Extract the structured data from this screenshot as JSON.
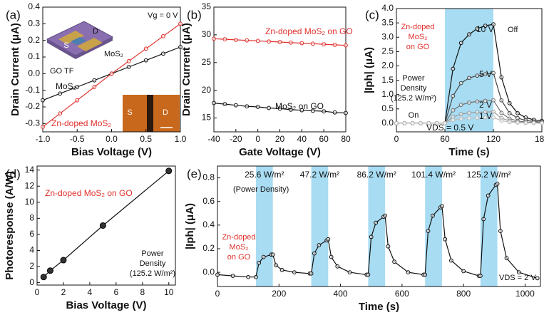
{
  "chart_data": [
    {
      "type": "line",
      "panel_label": "(a)",
      "x_label": "Bias Voltage (V)",
      "y_label": "Drain Current (μA)",
      "markers": true,
      "xlim": [
        -1,
        1
      ],
      "xticks": [
        {
          "value": -1,
          "label": "-1.0"
        },
        -0.5,
        {
          "value": 0,
          "label": "0.0"
        },
        0.5,
        {
          "value": 1,
          "label": "1.0"
        }
      ],
      "ylim": [
        -0.35,
        0.4
      ],
      "yticks": [
        -0.3,
        -0.2,
        -0.1,
        {
          "value": 0,
          "label": "0.0"
        },
        0.1,
        0.2,
        0.3,
        0.4
      ],
      "x": [
        -1,
        -0.75,
        -0.5,
        -0.25,
        0,
        0.25,
        0.5,
        0.75,
        1
      ],
      "series": [
        {
          "name": "MoS₂",
          "color": "#111111",
          "values": [
            -0.16,
            -0.12,
            -0.08,
            -0.04,
            0,
            0.04,
            0.08,
            0.12,
            0.16
          ]
        },
        {
          "name": "Zn-doped MoS₂",
          "color": "#e0302c",
          "values": [
            -0.32,
            -0.24,
            -0.16,
            -0.08,
            0,
            0.075,
            0.15,
            0.225,
            0.3
          ]
        }
      ],
      "annotations": [
        "Vg = 0 V",
        "S",
        "D",
        "MoS₂",
        "GO TF",
        "S",
        "D"
      ]
    },
    {
      "type": "line",
      "panel_label": "(b)",
      "x_label": "Gate Voltage (V)",
      "y_label": "Drain Current (μA)",
      "markers": true,
      "xlim": [
        -40,
        80
      ],
      "xticks": [
        -40,
        -20,
        0,
        20,
        40,
        60,
        80
      ],
      "ylim": [
        12.5,
        35
      ],
      "yticks": [
        15,
        20,
        25,
        30,
        35
      ],
      "x": [
        -40,
        -30,
        -20,
        -10,
        0,
        10,
        20,
        30,
        40,
        50,
        60,
        70,
        80
      ],
      "series": [
        {
          "name": "Zn-doped MoS₂ on GO",
          "color": "#e0302c",
          "values": [
            29.3,
            29.2,
            29.1,
            29.0,
            28.9,
            28.8,
            28.7,
            28.6,
            28.5,
            28.4,
            28.3,
            28.2,
            28.1
          ]
        },
        {
          "name": "MoS₂ on GO",
          "color": "#111111",
          "values": [
            17.7,
            17.5,
            17.3,
            17.1,
            17.0,
            16.8,
            16.7,
            16.5,
            16.4,
            16.3,
            16.2,
            16.0,
            15.9
          ]
        }
      ],
      "annotations": []
    },
    {
      "type": "line",
      "panel_label": "(c)",
      "x_label": "Time (s)",
      "y_label": "|Iph| (μA)",
      "markers": true,
      "xlim": [
        0,
        180
      ],
      "xticks": [
        0,
        60,
        120,
        180
      ],
      "ylim": [
        -0.3,
        4.0
      ],
      "yticks": [
        {
          "value": 0,
          "label": "0.0"
        },
        0.5,
        {
          "value": 1,
          "label": "1.0"
        },
        1.5,
        {
          "value": 2,
          "label": "2.0"
        },
        2.5,
        {
          "value": 3,
          "label": "3.0"
        },
        3.5,
        {
          "value": 4,
          "label": "4.0"
        }
      ],
      "highlight_color": "#a8dcf2",
      "highlights": [
        [
          60,
          120
        ]
      ],
      "x": [
        0,
        10,
        20,
        30,
        40,
        50,
        60,
        70,
        80,
        90,
        100,
        110,
        120,
        130,
        140,
        150,
        160,
        170,
        180
      ],
      "series": [
        {
          "name": "10 V",
          "color": "#111111",
          "values": [
            0,
            0,
            0,
            0,
            0,
            0,
            0,
            1.9,
            2.8,
            3.1,
            3.3,
            3.4,
            3.45,
            1.6,
            0.7,
            0.35,
            0.2,
            0.12,
            0.08
          ]
        },
        {
          "name": "5 V",
          "color": "#444444",
          "values": [
            0,
            0,
            0,
            0,
            0,
            0,
            0,
            0.95,
            1.4,
            1.58,
            1.66,
            1.71,
            1.75,
            0.8,
            0.35,
            0.18,
            0.1,
            0.06,
            0.04
          ]
        },
        {
          "name": "2 V",
          "color": "#707070",
          "values": [
            0,
            0,
            0,
            0,
            0,
            0,
            0,
            0.45,
            0.64,
            0.72,
            0.76,
            0.78,
            0.8,
            0.36,
            0.16,
            0.08,
            0.04,
            0.03,
            0.02
          ]
        },
        {
          "name": "1 V",
          "color": "#999999",
          "values": [
            0,
            0,
            0,
            0,
            0,
            0,
            0,
            0.22,
            0.32,
            0.36,
            0.38,
            0.39,
            0.4,
            0.18,
            0.08,
            0.04,
            0.02,
            0.01,
            0.01
          ]
        },
        {
          "name": "VDS = 0.5 V",
          "color": "#bbbbbb",
          "values": [
            0,
            0,
            0,
            0,
            0,
            0,
            0,
            0.11,
            0.16,
            0.18,
            0.19,
            0.2,
            0.2,
            0.09,
            0.04,
            0.02,
            0.01,
            0.01,
            0
          ]
        }
      ],
      "annotations": [
        "Zn-doped",
        "MoS₂",
        "on GO",
        "Off",
        "On",
        "Power",
        "Density",
        "(125.2 W/m²)"
      ]
    },
    {
      "type": "scatter",
      "panel_label": "(d)",
      "x_label": "Bias Voltage (V)",
      "y_label": "Photoresponse (A/W)",
      "xlim": [
        0,
        10.5
      ],
      "xticks": [
        0,
        2,
        4,
        6,
        8,
        10
      ],
      "ylim": [
        -0.3,
        14.5
      ],
      "yticks": [
        0,
        2,
        4,
        6,
        8,
        10,
        12,
        14
      ],
      "x": [
        0.5,
        1,
        2,
        5,
        10
      ],
      "series": [
        {
          "name": "Zn-doped MoS₂ on GO",
          "color": "#111111",
          "values": [
            0.7,
            1.5,
            2.8,
            7.1,
            13.9
          ]
        }
      ],
      "annotations": [
        "Power",
        "Density",
        "(125.2 W/m²)"
      ]
    },
    {
      "type": "line",
      "panel_label": "(e)",
      "x_label": "Time (s)",
      "y_label": "|Iph| (μA)",
      "markers": true,
      "xlim": [
        0,
        1050
      ],
      "xticks": [
        0,
        200,
        400,
        600,
        800,
        1000
      ],
      "ylim": [
        -0.12,
        0.9
      ],
      "yticks": [
        {
          "value": 0,
          "label": "0.0"
        },
        0.2,
        0.4,
        0.6,
        0.8
      ],
      "highlight_color": "#a8dcf2",
      "highlights": [
        [
          125,
          180
        ],
        [
          305,
          360
        ],
        [
          490,
          545
        ],
        [
          675,
          730
        ],
        [
          855,
          910
        ]
      ],
      "highlight_labels": [
        "25.6 W/m²",
        "47.2 W/m²",
        "86.2 W/m²",
        "101.4 W/m²",
        "125.2 W/m²"
      ],
      "x": [
        0,
        50,
        100,
        125,
        135,
        150,
        175,
        180,
        190,
        210,
        250,
        300,
        305,
        315,
        330,
        355,
        360,
        370,
        390,
        430,
        485,
        490,
        500,
        515,
        540,
        545,
        555,
        575,
        620,
        670,
        675,
        685,
        700,
        725,
        730,
        740,
        760,
        800,
        850,
        855,
        865,
        880,
        905,
        910,
        920,
        940,
        980,
        1040
      ],
      "series": [
        {
          "color": "#111111",
          "values": [
            -0.02,
            -0.03,
            -0.04,
            -0.04,
            0.08,
            0.13,
            0.15,
            0.15,
            0.06,
            0.02,
            0.0,
            -0.01,
            -0.01,
            0.16,
            0.23,
            0.27,
            0.28,
            0.13,
            0.05,
            0.0,
            -0.02,
            -0.02,
            0.3,
            0.42,
            0.47,
            0.48,
            0.22,
            0.09,
            0.0,
            -0.02,
            -0.02,
            0.35,
            0.48,
            0.55,
            0.56,
            0.28,
            0.1,
            0.01,
            -0.03,
            -0.03,
            0.45,
            0.65,
            0.74,
            0.75,
            0.35,
            0.12,
            0.0,
            -0.05
          ]
        }
      ],
      "annotations": [
        "(Power Density)",
        "Zn-doped",
        "MoS₂",
        "on GO",
        "VDS = 2 V"
      ]
    }
  ]
}
